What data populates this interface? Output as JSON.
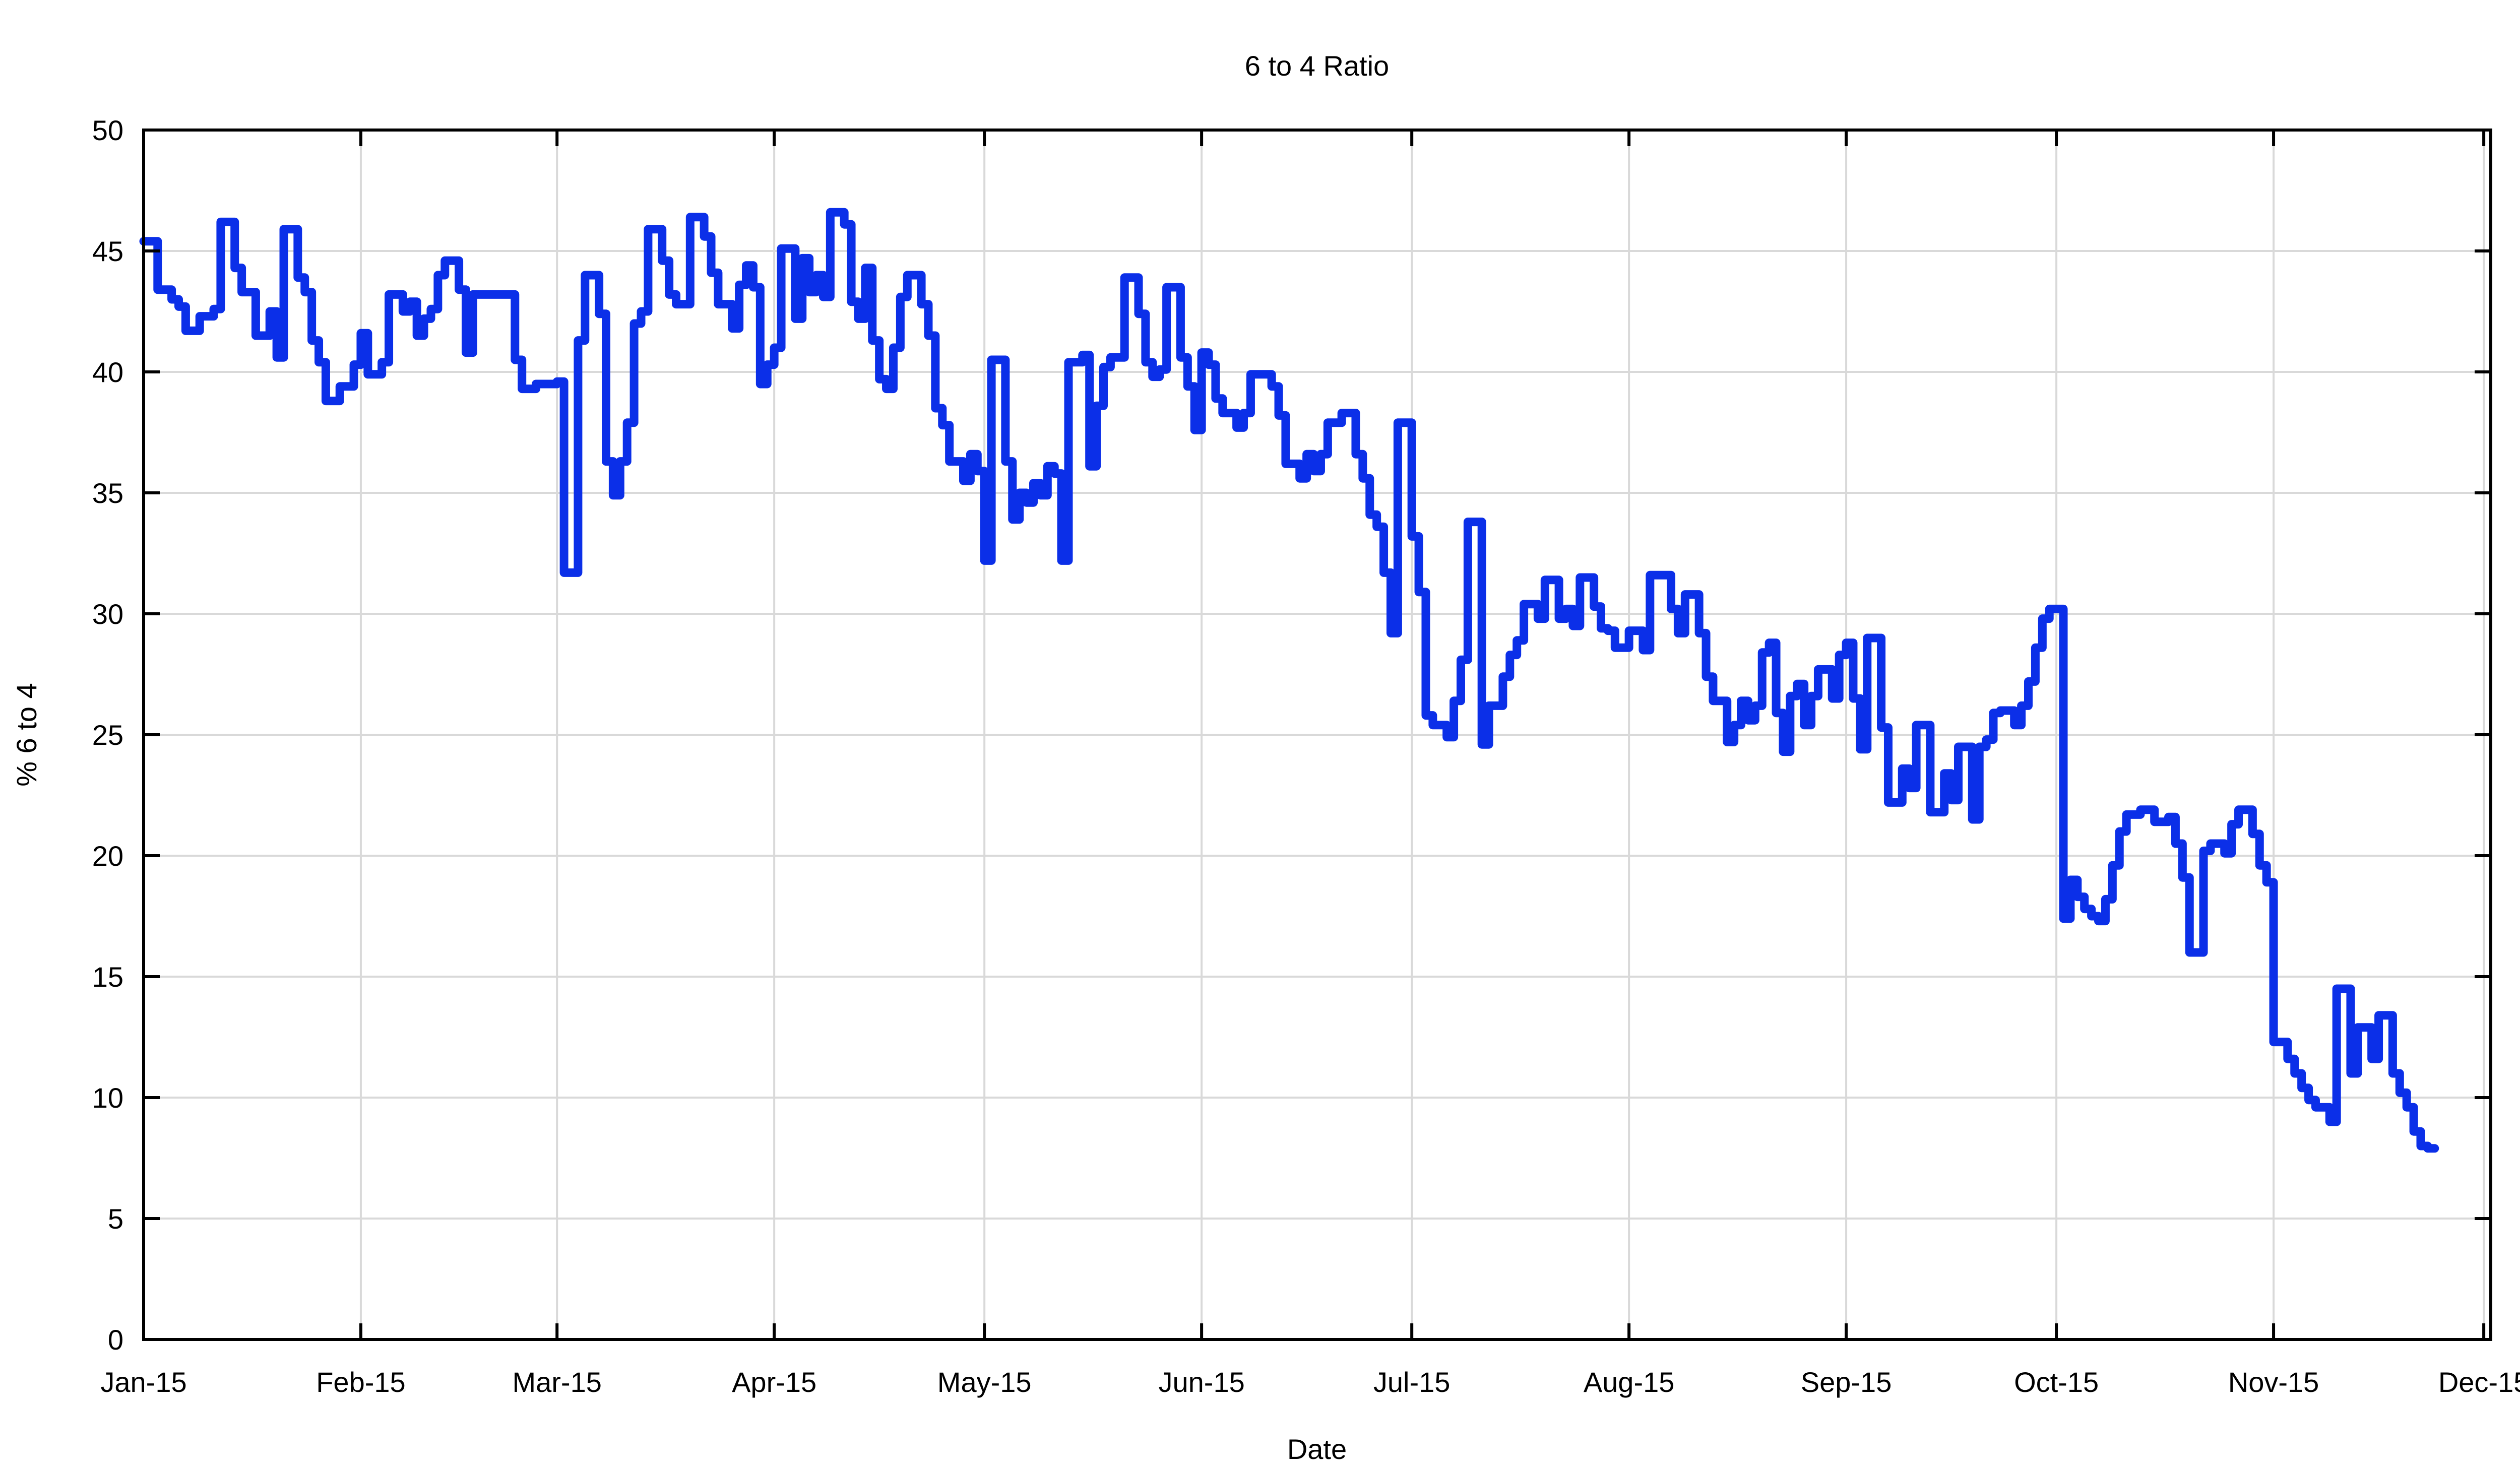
{
  "page": {
    "background": "#ffffff"
  },
  "chart_data": {
    "type": "line",
    "step": "after",
    "title": "6 to 4 Ratio",
    "xlabel": "Date",
    "ylabel": "% 6 to 4",
    "ylim": [
      0,
      50
    ],
    "y_tick_step": 5,
    "y_ticks": [
      0,
      5,
      10,
      15,
      20,
      25,
      30,
      35,
      40,
      45,
      50
    ],
    "grid": true,
    "legend": "none",
    "line_color": "#0b2fe8",
    "grid_color": "#d9d9d9",
    "axis_color": "#000000",
    "xlim_days": [
      0,
      335
    ],
    "x_ticks": [
      {
        "label": "Jan-15",
        "day": 0
      },
      {
        "label": "Feb-15",
        "day": 31
      },
      {
        "label": "Mar-15",
        "day": 59
      },
      {
        "label": "Apr-15",
        "day": 90
      },
      {
        "label": "May-15",
        "day": 120
      },
      {
        "label": "Jun-15",
        "day": 151
      },
      {
        "label": "Jul-15",
        "day": 181
      },
      {
        "label": "Aug-15",
        "day": 212
      },
      {
        "label": "Sep-15",
        "day": 243
      },
      {
        "label": "Oct-15",
        "day": 273
      },
      {
        "label": "Nov-15",
        "day": 304
      },
      {
        "label": "Dec-15",
        "day": 334
      }
    ],
    "series": [
      {
        "name": "6 to 4 ratio",
        "end_day": 327,
        "points": [
          [
            0,
            45.4
          ],
          [
            2,
            43.4
          ],
          [
            4,
            43.0
          ],
          [
            5,
            42.7
          ],
          [
            6,
            41.7
          ],
          [
            8,
            42.3
          ],
          [
            10,
            42.6
          ],
          [
            11,
            46.2
          ],
          [
            13,
            44.3
          ],
          [
            14,
            43.3
          ],
          [
            16,
            41.5
          ],
          [
            18,
            42.5
          ],
          [
            19,
            40.6
          ],
          [
            20,
            45.9
          ],
          [
            22,
            43.9
          ],
          [
            23,
            43.3
          ],
          [
            24,
            41.3
          ],
          [
            25,
            40.4
          ],
          [
            26,
            38.8
          ],
          [
            28,
            39.4
          ],
          [
            30,
            40.3
          ],
          [
            31,
            41.6
          ],
          [
            32,
            39.9
          ],
          [
            34,
            40.4
          ],
          [
            35,
            43.2
          ],
          [
            37,
            42.5
          ],
          [
            38,
            42.9
          ],
          [
            39,
            41.5
          ],
          [
            40,
            42.2
          ],
          [
            41,
            42.6
          ],
          [
            42,
            44.0
          ],
          [
            43,
            44.6
          ],
          [
            45,
            43.4
          ],
          [
            46,
            40.8
          ],
          [
            47,
            43.2
          ],
          [
            53,
            40.5
          ],
          [
            54,
            39.3
          ],
          [
            56,
            39.5
          ],
          [
            59,
            39.6
          ],
          [
            60,
            31.7
          ],
          [
            62,
            41.3
          ],
          [
            63,
            44.0
          ],
          [
            65,
            42.4
          ],
          [
            66,
            36.3
          ],
          [
            67,
            34.9
          ],
          [
            68,
            36.3
          ],
          [
            69,
            37.9
          ],
          [
            70,
            42.0
          ],
          [
            71,
            42.5
          ],
          [
            72,
            45.9
          ],
          [
            74,
            44.6
          ],
          [
            75,
            43.2
          ],
          [
            76,
            42.8
          ],
          [
            78,
            46.4
          ],
          [
            80,
            45.6
          ],
          [
            81,
            44.1
          ],
          [
            82,
            42.8
          ],
          [
            84,
            41.8
          ],
          [
            85,
            43.6
          ],
          [
            86,
            44.4
          ],
          [
            87,
            43.5
          ],
          [
            88,
            39.5
          ],
          [
            89,
            40.3
          ],
          [
            90,
            41.0
          ],
          [
            91,
            45.1
          ],
          [
            93,
            42.2
          ],
          [
            94,
            44.7
          ],
          [
            95,
            43.3
          ],
          [
            96,
            44.0
          ],
          [
            97,
            43.1
          ],
          [
            98,
            46.6
          ],
          [
            100,
            46.1
          ],
          [
            101,
            42.9
          ],
          [
            102,
            42.2
          ],
          [
            103,
            44.3
          ],
          [
            104,
            41.3
          ],
          [
            105,
            39.7
          ],
          [
            106,
            39.3
          ],
          [
            107,
            41.0
          ],
          [
            108,
            43.1
          ],
          [
            109,
            44.0
          ],
          [
            111,
            42.8
          ],
          [
            112,
            41.5
          ],
          [
            113,
            38.5
          ],
          [
            114,
            37.8
          ],
          [
            115,
            36.3
          ],
          [
            117,
            35.5
          ],
          [
            118,
            36.6
          ],
          [
            119,
            35.9
          ],
          [
            120,
            32.2
          ],
          [
            121,
            40.5
          ],
          [
            123,
            36.3
          ],
          [
            124,
            33.9
          ],
          [
            125,
            35.0
          ],
          [
            126,
            34.6
          ],
          [
            127,
            35.4
          ],
          [
            128,
            34.9
          ],
          [
            129,
            36.1
          ],
          [
            130,
            35.8
          ],
          [
            131,
            32.2
          ],
          [
            132,
            40.4
          ],
          [
            134,
            40.7
          ],
          [
            135,
            36.1
          ],
          [
            136,
            38.6
          ],
          [
            137,
            40.2
          ],
          [
            138,
            40.6
          ],
          [
            140,
            43.9
          ],
          [
            142,
            42.4
          ],
          [
            143,
            40.4
          ],
          [
            144,
            39.8
          ],
          [
            145,
            40.1
          ],
          [
            146,
            43.5
          ],
          [
            148,
            40.6
          ],
          [
            149,
            39.4
          ],
          [
            150,
            37.6
          ],
          [
            151,
            40.8
          ],
          [
            152,
            40.3
          ],
          [
            153,
            38.9
          ],
          [
            154,
            38.3
          ],
          [
            156,
            37.7
          ],
          [
            157,
            38.3
          ],
          [
            158,
            39.9
          ],
          [
            161,
            39.4
          ],
          [
            162,
            38.2
          ],
          [
            163,
            36.2
          ],
          [
            165,
            35.6
          ],
          [
            166,
            36.6
          ],
          [
            167,
            35.9
          ],
          [
            168,
            36.6
          ],
          [
            169,
            37.9
          ],
          [
            171,
            38.3
          ],
          [
            173,
            36.6
          ],
          [
            174,
            35.6
          ],
          [
            175,
            34.1
          ],
          [
            176,
            33.6
          ],
          [
            177,
            31.7
          ],
          [
            178,
            29.2
          ],
          [
            179,
            37.9
          ],
          [
            181,
            33.2
          ],
          [
            182,
            30.9
          ],
          [
            183,
            25.8
          ],
          [
            184,
            25.4
          ],
          [
            186,
            24.9
          ],
          [
            187,
            26.4
          ],
          [
            188,
            28.1
          ],
          [
            189,
            33.8
          ],
          [
            191,
            24.6
          ],
          [
            192,
            26.2
          ],
          [
            194,
            27.4
          ],
          [
            195,
            28.3
          ],
          [
            196,
            28.9
          ],
          [
            197,
            30.4
          ],
          [
            199,
            29.8
          ],
          [
            200,
            31.4
          ],
          [
            202,
            29.8
          ],
          [
            203,
            30.2
          ],
          [
            204,
            29.5
          ],
          [
            205,
            31.5
          ],
          [
            207,
            30.3
          ],
          [
            208,
            29.4
          ],
          [
            209,
            29.3
          ],
          [
            210,
            28.6
          ],
          [
            212,
            29.3
          ],
          [
            214,
            28.5
          ],
          [
            215,
            31.6
          ],
          [
            218,
            30.2
          ],
          [
            219,
            29.2
          ],
          [
            220,
            30.8
          ],
          [
            222,
            29.2
          ],
          [
            223,
            27.4
          ],
          [
            224,
            26.4
          ],
          [
            226,
            24.7
          ],
          [
            227,
            25.4
          ],
          [
            228,
            26.4
          ],
          [
            229,
            25.6
          ],
          [
            230,
            26.2
          ],
          [
            231,
            28.4
          ],
          [
            232,
            28.8
          ],
          [
            233,
            25.9
          ],
          [
            234,
            24.3
          ],
          [
            235,
            26.6
          ],
          [
            236,
            27.1
          ],
          [
            237,
            25.4
          ],
          [
            238,
            26.6
          ],
          [
            239,
            27.7
          ],
          [
            241,
            26.5
          ],
          [
            242,
            28.3
          ],
          [
            243,
            28.8
          ],
          [
            244,
            26.5
          ],
          [
            245,
            24.4
          ],
          [
            246,
            29.0
          ],
          [
            248,
            25.3
          ],
          [
            249,
            22.2
          ],
          [
            251,
            23.6
          ],
          [
            252,
            22.8
          ],
          [
            253,
            25.4
          ],
          [
            255,
            21.8
          ],
          [
            257,
            23.4
          ],
          [
            258,
            22.3
          ],
          [
            259,
            24.5
          ],
          [
            261,
            21.5
          ],
          [
            262,
            24.5
          ],
          [
            263,
            24.8
          ],
          [
            264,
            25.9
          ],
          [
            265,
            26.0
          ],
          [
            267,
            25.4
          ],
          [
            268,
            26.2
          ],
          [
            269,
            27.2
          ],
          [
            270,
            28.6
          ],
          [
            271,
            29.8
          ],
          [
            272,
            30.2
          ],
          [
            274,
            17.4
          ],
          [
            275,
            19.0
          ],
          [
            276,
            18.3
          ],
          [
            277,
            17.8
          ],
          [
            278,
            17.5
          ],
          [
            279,
            17.3
          ],
          [
            280,
            18.2
          ],
          [
            281,
            19.6
          ],
          [
            282,
            21.0
          ],
          [
            283,
            21.7
          ],
          [
            285,
            21.9
          ],
          [
            287,
            21.4
          ],
          [
            289,
            21.6
          ],
          [
            290,
            20.5
          ],
          [
            291,
            19.1
          ],
          [
            292,
            16.0
          ],
          [
            294,
            20.2
          ],
          [
            295,
            20.5
          ],
          [
            297,
            20.1
          ],
          [
            298,
            21.3
          ],
          [
            299,
            21.9
          ],
          [
            301,
            20.9
          ],
          [
            302,
            19.6
          ],
          [
            303,
            18.9
          ],
          [
            304,
            12.3
          ],
          [
            306,
            11.6
          ],
          [
            307,
            11.0
          ],
          [
            308,
            10.4
          ],
          [
            309,
            9.9
          ],
          [
            310,
            9.6
          ],
          [
            312,
            9.0
          ],
          [
            313,
            14.5
          ],
          [
            315,
            11.0
          ],
          [
            316,
            12.9
          ],
          [
            318,
            11.6
          ],
          [
            319,
            13.4
          ],
          [
            321,
            11.0
          ],
          [
            322,
            10.2
          ],
          [
            323,
            9.6
          ],
          [
            324,
            8.6
          ],
          [
            325,
            8.0
          ],
          [
            326,
            7.9
          ]
        ]
      }
    ]
  }
}
